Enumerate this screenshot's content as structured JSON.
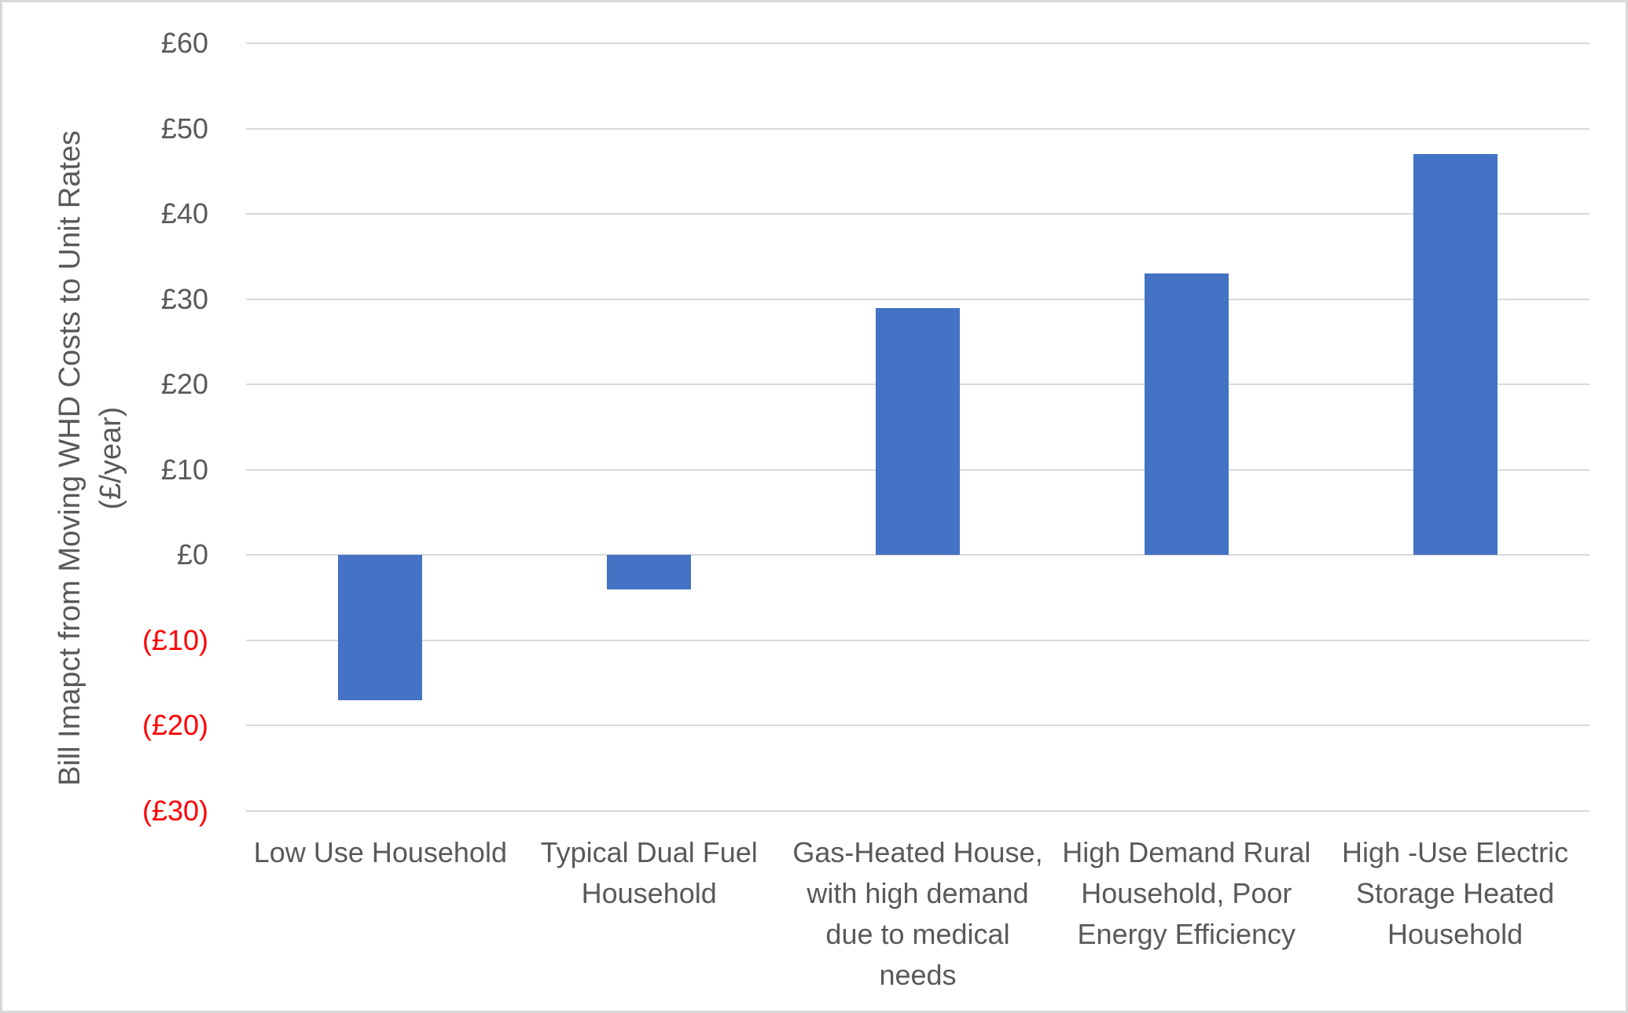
{
  "chart_data": {
    "type": "bar",
    "title": "",
    "categories": [
      "Low Use Household",
      "Typical Dual Fuel Household",
      "Gas-Heated House, with high demand due to medical needs",
      "High Demand Rural Household, Poor Energy Efficiency",
      "High -Use Electric Storage Heated Household"
    ],
    "categories_wrapped": [
      [
        "Low Use Household"
      ],
      [
        "Typical Dual Fuel",
        "Household"
      ],
      [
        "Gas-Heated House,",
        "with high demand",
        "due to medical",
        "needs"
      ],
      [
        "High Demand Rural",
        "Household, Poor",
        "Energy Efficiency"
      ],
      [
        "High -Use Electric",
        "Storage Heated",
        "Household"
      ]
    ],
    "values": [
      -17,
      -4,
      29,
      33,
      47
    ],
    "ylabel": "Bill Imapct from Moving WHD Costs to Unit Rates (£/year)",
    "ylabel_lines": [
      "Bill Imapct from Moving WHD Costs to Unit Rates",
      "(£/year)"
    ],
    "xlabel": "",
    "ylim": [
      -30,
      60
    ],
    "ytick_step": 10,
    "yticks": [
      {
        "value": 60,
        "label": "£60",
        "negative": false
      },
      {
        "value": 50,
        "label": "£50",
        "negative": false
      },
      {
        "value": 40,
        "label": "£40",
        "negative": false
      },
      {
        "value": 30,
        "label": "£30",
        "negative": false
      },
      {
        "value": 20,
        "label": "£20",
        "negative": false
      },
      {
        "value": 10,
        "label": "£10",
        "negative": false
      },
      {
        "value": 0,
        "label": "£0",
        "negative": false
      },
      {
        "value": -10,
        "label": "(£10)",
        "negative": true
      },
      {
        "value": -20,
        "label": "(£20)",
        "negative": true
      },
      {
        "value": -30,
        "label": "(£30)",
        "negative": true
      }
    ],
    "grid": true,
    "legend": false,
    "colors": {
      "bar": "#4472C4",
      "gridline": "#d9d9d9",
      "axis_text": "#595959",
      "negative_tick_text": "#ff0000",
      "background": "#ffffff",
      "border": "#d9d9d9"
    }
  }
}
